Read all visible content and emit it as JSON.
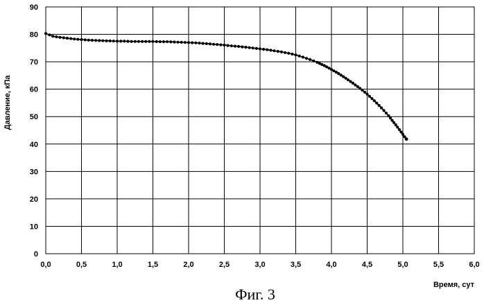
{
  "chart_data": {
    "type": "scatter",
    "title": "",
    "xlabel": "Время, сут",
    "ylabel": "Давление, кПа",
    "xlim": [
      0,
      6
    ],
    "ylim": [
      0,
      90
    ],
    "x_ticks": [
      "0,0",
      "0,5",
      "1,0",
      "1,5",
      "2,0",
      "2,5",
      "3,0",
      "3,5",
      "4,0",
      "4,5",
      "5,0",
      "5,5",
      "6,0"
    ],
    "y_ticks": [
      "0",
      "10",
      "20",
      "30",
      "40",
      "50",
      "60",
      "70",
      "80",
      "90"
    ],
    "grid": true,
    "legend": "none",
    "marker_color": "#000000",
    "series": [
      {
        "x": [
          0.0,
          0.1,
          0.2,
          0.3,
          0.4,
          0.5,
          0.6,
          0.7,
          0.8,
          0.9,
          1.0,
          1.1,
          1.2,
          1.3,
          1.4,
          1.5,
          1.6,
          1.7,
          1.8,
          1.9,
          2.0,
          2.1,
          2.2,
          2.3,
          2.4,
          2.5,
          2.6,
          2.7,
          2.8,
          2.9,
          3.0,
          3.1,
          3.2,
          3.3,
          3.4,
          3.5,
          3.6,
          3.7,
          3.8,
          3.9,
          4.0,
          4.1,
          4.2,
          4.3,
          4.4,
          4.5,
          4.6,
          4.7,
          4.8,
          4.9,
          5.0,
          5.05
        ],
        "y": [
          80.3,
          79.3,
          78.9,
          78.6,
          78.3,
          78.1,
          77.9,
          77.8,
          77.7,
          77.6,
          77.5,
          77.5,
          77.4,
          77.4,
          77.4,
          77.4,
          77.3,
          77.3,
          77.2,
          77.1,
          77.0,
          76.9,
          76.7,
          76.5,
          76.3,
          76.1,
          75.8,
          75.6,
          75.3,
          75.0,
          74.7,
          74.4,
          74.0,
          73.6,
          73.1,
          72.5,
          71.7,
          70.8,
          69.8,
          68.6,
          67.2,
          65.7,
          64.0,
          62.2,
          60.3,
          58.2,
          55.8,
          53.2,
          50.3,
          47.0,
          43.5,
          41.8
        ]
      }
    ]
  },
  "caption": "Фиг. 3"
}
